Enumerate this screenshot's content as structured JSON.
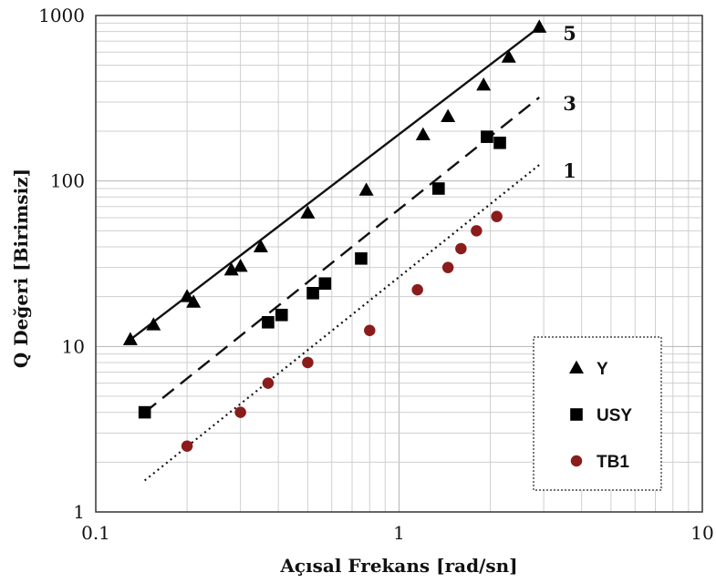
{
  "chart_data": {
    "type": "scatter",
    "xlabel": "Açısal Frekans [rad/sn]",
    "ylabel": "Q Değeri [Birimsiz]",
    "x_scale": "log",
    "y_scale": "log",
    "xlim": [
      0.1,
      10
    ],
    "ylim": [
      1,
      1000
    ],
    "x_ticks": [
      "0.1",
      "1",
      "10"
    ],
    "y_ticks": [
      "1",
      "10",
      "100",
      "1000"
    ],
    "grid": true,
    "legend_position": "bottom-right",
    "series": [
      {
        "name": "Y",
        "marker": "triangle",
        "color": "#000000",
        "points": [
          [
            0.13,
            11
          ],
          [
            0.155,
            13.5
          ],
          [
            0.2,
            20
          ],
          [
            0.21,
            18.5
          ],
          [
            0.28,
            29
          ],
          [
            0.3,
            30.5
          ],
          [
            0.35,
            40
          ],
          [
            0.5,
            64
          ],
          [
            0.78,
            88
          ],
          [
            1.2,
            190
          ],
          [
            1.45,
            245
          ],
          [
            1.9,
            380
          ],
          [
            2.3,
            560
          ],
          [
            2.9,
            850
          ]
        ]
      },
      {
        "name": "USY",
        "marker": "square",
        "color": "#000000",
        "points": [
          [
            0.145,
            4
          ],
          [
            0.37,
            14
          ],
          [
            0.41,
            15.5
          ],
          [
            0.52,
            21
          ],
          [
            0.57,
            24
          ],
          [
            0.75,
            34
          ],
          [
            1.35,
            90
          ],
          [
            1.95,
            185
          ],
          [
            2.15,
            170
          ]
        ]
      },
      {
        "name": "TB1",
        "marker": "circle",
        "color": "#8b1c1c",
        "points": [
          [
            0.2,
            2.5
          ],
          [
            0.3,
            4
          ],
          [
            0.37,
            6
          ],
          [
            0.5,
            8
          ],
          [
            0.8,
            12.5
          ],
          [
            1.15,
            22
          ],
          [
            1.45,
            30
          ],
          [
            1.6,
            39
          ],
          [
            1.8,
            50
          ],
          [
            2.1,
            61
          ]
        ]
      }
    ],
    "fit_lines": [
      {
        "label": "5",
        "style": "solid",
        "x": [
          0.13,
          2.9
        ],
        "y": [
          11,
          850
        ]
      },
      {
        "label": "3",
        "style": "dashed",
        "x": [
          0.145,
          2.9
        ],
        "y": [
          4,
          320
        ]
      },
      {
        "label": "1",
        "style": "dotted",
        "x": [
          0.145,
          2.9
        ],
        "y": [
          1.55,
          125
        ]
      }
    ]
  }
}
